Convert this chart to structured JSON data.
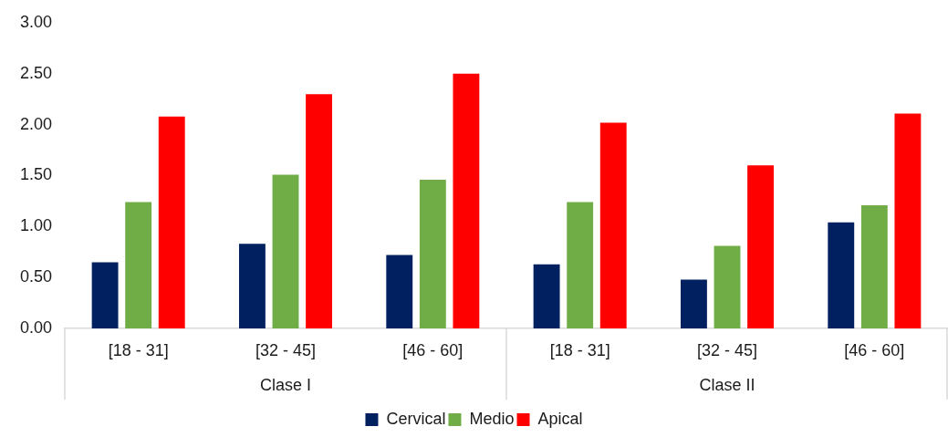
{
  "chart_data": {
    "type": "bar",
    "categories": [
      "[18 - 31]",
      "[32 - 45]",
      "[46 - 60]",
      "[18 - 31]",
      "[32 - 45]",
      "[46 - 60]"
    ],
    "series": [
      {
        "name": "Cervical",
        "color": "#002060",
        "values": [
          0.65,
          0.83,
          0.72,
          0.63,
          0.48,
          1.04
        ]
      },
      {
        "name": "Medio",
        "color": "#70ad47",
        "values": [
          1.24,
          1.51,
          1.46,
          1.24,
          0.81,
          1.21
        ]
      },
      {
        "name": "Apical",
        "color": "#ff0000",
        "values": [
          2.08,
          2.3,
          2.5,
          2.02,
          1.6,
          2.11
        ]
      }
    ],
    "ylim": [
      0,
      3
    ],
    "yticks": [
      {
        "value": 0,
        "label": "0.00"
      },
      {
        "value": 0.5,
        "label": "0.50"
      },
      {
        "value": 1,
        "label": "1.00"
      },
      {
        "value": 1.5,
        "label": "1.50"
      },
      {
        "value": 2,
        "label": "2.00"
      },
      {
        "value": 2.5,
        "label": "2.50"
      },
      {
        "value": 3,
        "label": "3.00"
      }
    ],
    "grid": false,
    "legend": "bottom",
    "annotations": [
      "Clase I",
      "Clase II"
    ]
  }
}
